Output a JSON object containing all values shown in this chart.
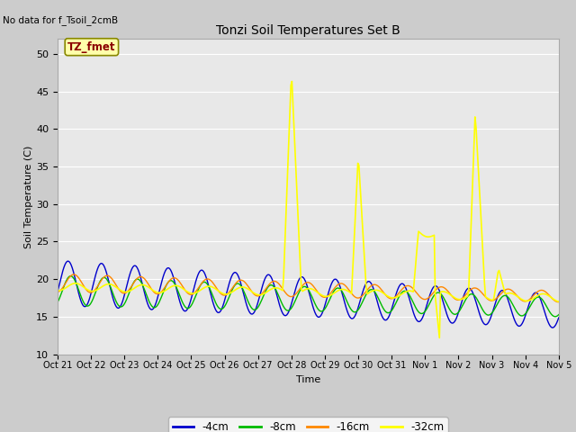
{
  "title": "Tonzi Soil Temperatures Set B",
  "no_data_text": "No data for f_Tsoil_2cmB",
  "annotation_text": "TZ_fmet",
  "xlabel": "Time",
  "ylabel": "Soil Temperature (C)",
  "ylim": [
    10,
    52
  ],
  "yticks": [
    10,
    15,
    20,
    25,
    30,
    35,
    40,
    45,
    50
  ],
  "fig_bg": "#cccccc",
  "axes_bg": "#e8e8e8",
  "grid_color": "#ffffff",
  "colors": {
    "4cm": "#0000cc",
    "8cm": "#00bb00",
    "16cm": "#ff8800",
    "32cm": "#ffff00"
  },
  "x_tick_labels": [
    "Oct 21",
    "Oct 22",
    "Oct 23",
    "Oct 24",
    "Oct 25",
    "Oct 26",
    "Oct 27",
    "Oct 28",
    "Oct 29",
    "Oct 30",
    "Oct 31",
    "Nov 1",
    "Nov 2",
    "Nov 3",
    "Nov 4",
    "Nov 5"
  ],
  "legend_labels": [
    "-4cm",
    "-8cm",
    "-16cm",
    "-32cm"
  ]
}
